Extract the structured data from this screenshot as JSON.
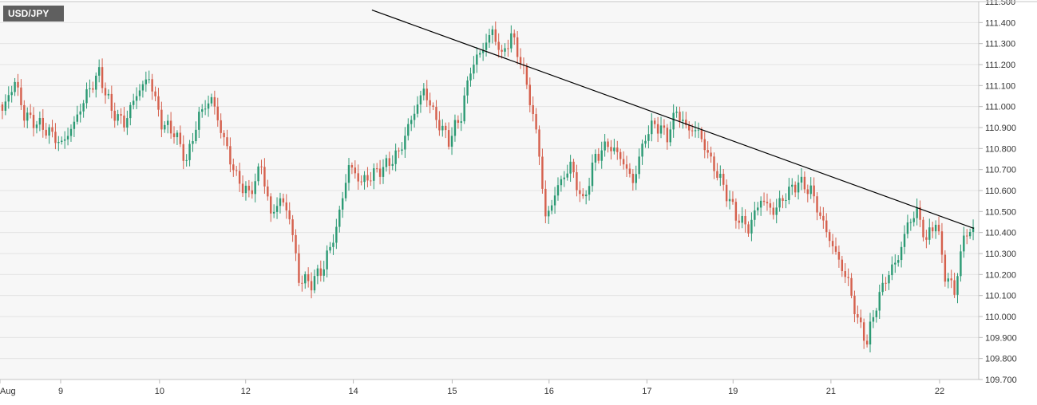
{
  "chart_data": {
    "type": "candlestick",
    "title": "USD/JPY",
    "xlabel": "",
    "ylabel": "",
    "ylim": [
      109.7,
      111.5
    ],
    "y_ticks": [
      "111.500",
      "111.400",
      "111.300",
      "111.200",
      "111.100",
      "111.000",
      "110.900",
      "110.800",
      "110.700",
      "110.600",
      "110.500",
      "110.400",
      "110.300",
      "110.200",
      "110.100",
      "110.000",
      "109.900",
      "109.800",
      "109.700"
    ],
    "x_tick_labels": [
      "Aug",
      "9",
      "10",
      "12",
      "14",
      "15",
      "16",
      "17",
      "19",
      "21",
      "22"
    ],
    "grid": "horizontal",
    "colors": {
      "up": "#2c9a74",
      "down": "#d5604d",
      "trendline": "#000000",
      "plot_bg": "#f7f7f7",
      "grid": "#e3e3e3"
    },
    "trendline": {
      "from": {
        "bar": 0.38,
        "price": 111.46
      },
      "to": {
        "bar": 0.995,
        "price": 110.42
      }
    },
    "anchors": [
      [
        0,
        110.98
      ],
      [
        4,
        111.12
      ],
      [
        7,
        110.96
      ],
      [
        11,
        110.92
      ],
      [
        15,
        110.88
      ],
      [
        19,
        110.82
      ],
      [
        23,
        110.92
      ],
      [
        27,
        111.06
      ],
      [
        31,
        111.16
      ],
      [
        35,
        110.98
      ],
      [
        39,
        110.92
      ],
      [
        43,
        111.06
      ],
      [
        47,
        111.14
      ],
      [
        51,
        110.92
      ],
      [
        55,
        110.88
      ],
      [
        59,
        110.74
      ],
      [
        63,
        110.96
      ],
      [
        67,
        111.04
      ],
      [
        71,
        110.84
      ],
      [
        75,
        110.66
      ],
      [
        79,
        110.58
      ],
      [
        83,
        110.72
      ],
      [
        86,
        110.48
      ],
      [
        89,
        110.56
      ],
      [
        92,
        110.48
      ],
      [
        95,
        110.18
      ],
      [
        99,
        110.16
      ],
      [
        103,
        110.24
      ],
      [
        107,
        110.42
      ],
      [
        111,
        110.72
      ],
      [
        115,
        110.64
      ],
      [
        119,
        110.68
      ],
      [
        123,
        110.72
      ],
      [
        127,
        110.78
      ],
      [
        131,
        110.94
      ],
      [
        135,
        111.08
      ],
      [
        139,
        110.94
      ],
      [
        143,
        110.84
      ],
      [
        147,
        110.96
      ],
      [
        150,
        111.18
      ],
      [
        154,
        111.28
      ],
      [
        157,
        111.36
      ],
      [
        160,
        111.24
      ],
      [
        163,
        111.34
      ],
      [
        166,
        111.22
      ],
      [
        169,
        111.04
      ],
      [
        172,
        110.78
      ],
      [
        174,
        110.46
      ],
      [
        178,
        110.62
      ],
      [
        182,
        110.72
      ],
      [
        186,
        110.54
      ],
      [
        190,
        110.76
      ],
      [
        194,
        110.82
      ],
      [
        198,
        110.76
      ],
      [
        202,
        110.64
      ],
      [
        206,
        110.86
      ],
      [
        209,
        110.92
      ],
      [
        213,
        110.86
      ],
      [
        216,
        110.98
      ],
      [
        219,
        110.9
      ],
      [
        223,
        110.88
      ],
      [
        227,
        110.74
      ],
      [
        231,
        110.62
      ],
      [
        235,
        110.48
      ],
      [
        239,
        110.42
      ],
      [
        243,
        110.56
      ],
      [
        247,
        110.5
      ],
      [
        251,
        110.58
      ],
      [
        255,
        110.64
      ],
      [
        259,
        110.6
      ],
      [
        263,
        110.44
      ],
      [
        267,
        110.3
      ],
      [
        271,
        110.16
      ],
      [
        274,
        109.98
      ],
      [
        277,
        109.88
      ],
      [
        280,
        110.06
      ],
      [
        283,
        110.18
      ],
      [
        287,
        110.28
      ],
      [
        290,
        110.44
      ],
      [
        293,
        110.5
      ],
      [
        296,
        110.36
      ],
      [
        299,
        110.46
      ],
      [
        302,
        110.2
      ],
      [
        305,
        110.12
      ],
      [
        308,
        110.38
      ],
      [
        311,
        110.42
      ]
    ]
  }
}
